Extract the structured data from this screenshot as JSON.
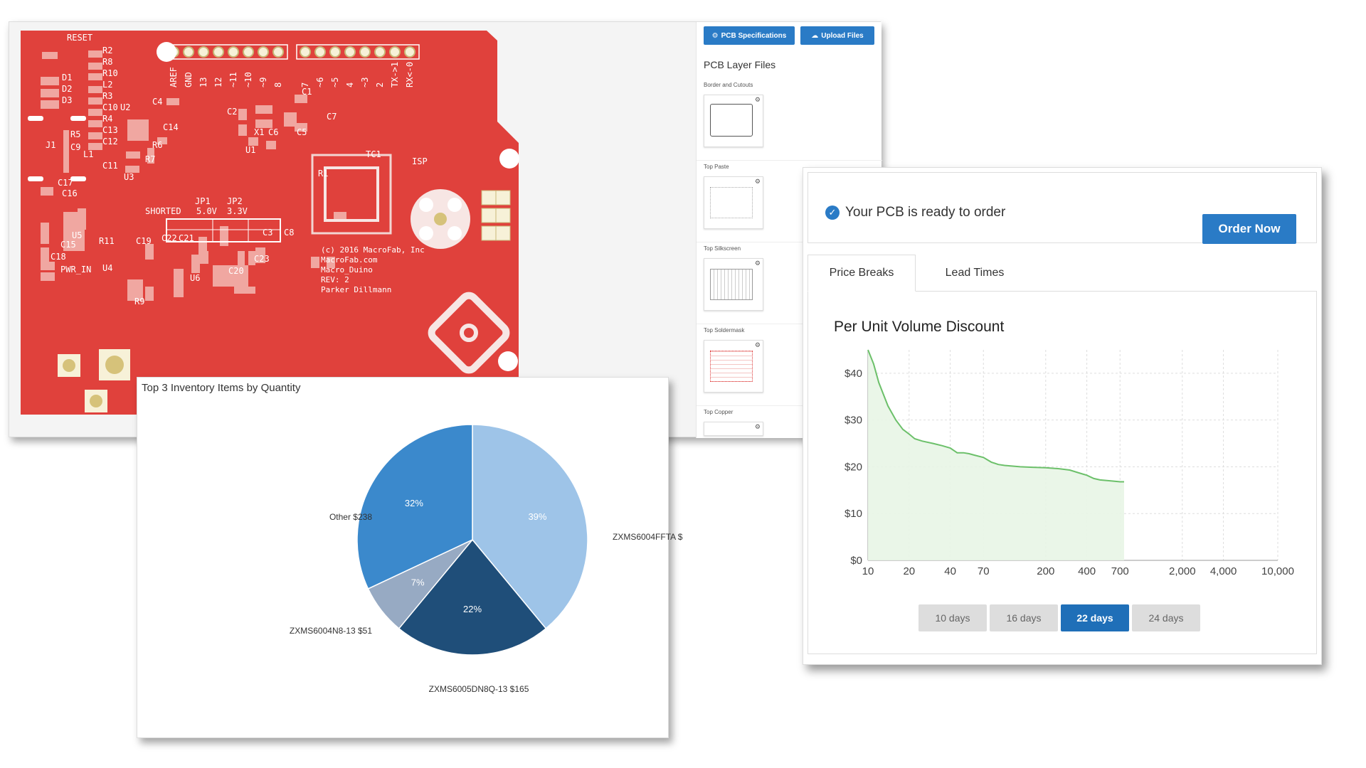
{
  "pcb_viewer": {
    "buttons": {
      "specs": "PCB Specifications",
      "upload": "Upload Files"
    },
    "layers_title": "PCB Layer Files",
    "layers": [
      {
        "label": "Border and Cutouts"
      },
      {
        "label": "Top Paste"
      },
      {
        "label": "Top Silkscreen"
      },
      {
        "label": "Top Soldermask"
      },
      {
        "label": "Top Copper"
      }
    ],
    "board": {
      "color": "#e0413c",
      "header_pins_left": [
        "AREF",
        "GND",
        "13",
        "12",
        "~11",
        "~10",
        "~9",
        "8"
      ],
      "header_pins_right": [
        "7",
        "~6",
        "~5",
        "4",
        "~3",
        "2",
        "TX->1",
        "RX<-0"
      ],
      "labels": [
        "RESET",
        "R2",
        "R8",
        "R10",
        "L2",
        "R3",
        "C10",
        "R4",
        "C13",
        "C12",
        "L1",
        "C11",
        "D1",
        "D2",
        "D3",
        "U2",
        "C4",
        "C14",
        "R6",
        "R7",
        "U3",
        "J1",
        "C17",
        "C16",
        "U5",
        "C15",
        "C18",
        "PWR_IN",
        "U4",
        "R11",
        "C19",
        "R9",
        "C22",
        "C21",
        "U6",
        "C20",
        "C23",
        "C2",
        "C1",
        "X1",
        "C6",
        "C5",
        "C7",
        "U1",
        "R1",
        "TC1",
        "ISP",
        "C3",
        "C8",
        "JP1",
        "JP2",
        "SHORTED",
        "5.0V",
        "3.3V",
        "C9",
        "R5"
      ],
      "copyright_lines": [
        "(c) 2016 MacroFab, Inc",
        "MacroFab.com",
        "Macro_Duino",
        "REV: 2",
        "Parker Dillmann"
      ]
    }
  },
  "inventory_chart": {
    "title": "Top 3 Inventory Items by Quantity",
    "slice_labels": [
      "ZXMS6004FFTA $",
      "ZXMS6005DN8Q-13 $165",
      "ZXMS6004N8-13 $51",
      "Other $238"
    ],
    "slice_pcts": [
      "39%",
      "22%",
      "7%",
      "32%"
    ],
    "colors": [
      "#9ec4e8",
      "#1f4e79",
      "#97aac3",
      "#3b89cc"
    ]
  },
  "order_panel": {
    "ready_text": "Your PCB is ready to order",
    "order_button": "Order Now",
    "tabs": [
      "Price Breaks",
      "Lead Times"
    ],
    "chart_title": "Per Unit Volume Discount",
    "day_buttons": [
      "10 days",
      "16 days",
      "22 days",
      "24 days"
    ],
    "active_day": "22 days",
    "accent": "#2a7bc6"
  },
  "chart_data": [
    {
      "type": "pie",
      "title": "Top 3 Inventory Items by Quantity",
      "labels": [
        "ZXMS6004FFTA",
        "ZXMS6005DN8Q-13",
        "ZXMS6004N8-13",
        "Other"
      ],
      "values": [
        39,
        22,
        7,
        32
      ],
      "value_labels": [
        "$",
        "$165",
        "$51",
        "$238"
      ]
    },
    {
      "type": "area",
      "title": "Per Unit Volume Discount",
      "xscale": "log",
      "x_ticks": [
        "10",
        "20",
        "40",
        "70",
        "200",
        "400",
        "700",
        "2,000",
        "4,000",
        "10,000"
      ],
      "x_tick_values": [
        10,
        20,
        40,
        70,
        200,
        400,
        700,
        2000,
        4000,
        10000
      ],
      "y_ticks": [
        "$0",
        "$10",
        "$20",
        "$30",
        "$40"
      ],
      "ylim": [
        0,
        45
      ],
      "xlim": [
        10,
        10000
      ],
      "grid": true,
      "series": [
        {
          "x": [
            10,
            11,
            12,
            14,
            16,
            18,
            20,
            22,
            25,
            30,
            35,
            40,
            45,
            50,
            55,
            60,
            70,
            80,
            90,
            100,
            130,
            160,
            200,
            250,
            300,
            350,
            400,
            450,
            500,
            600,
            700,
            750
          ],
          "y": [
            45,
            42,
            38,
            33,
            30,
            28,
            27,
            26,
            25.5,
            25,
            24.5,
            24,
            23,
            23,
            22.8,
            22.5,
            22,
            21,
            20.5,
            20.3,
            20,
            19.9,
            19.8,
            19.6,
            19.3,
            18.7,
            18.2,
            17.5,
            17.2,
            17,
            16.8,
            16.8
          ]
        }
      ]
    }
  ]
}
